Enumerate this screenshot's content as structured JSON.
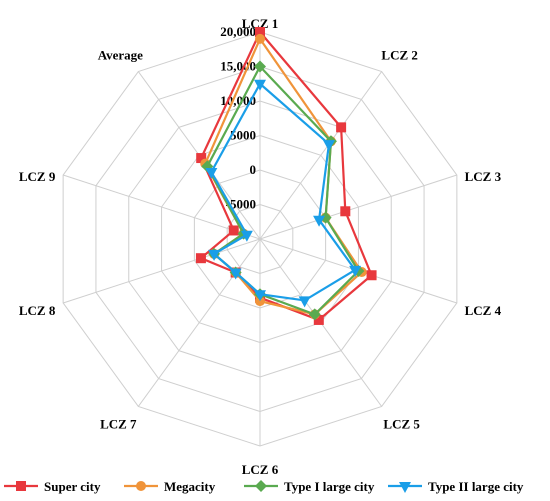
{
  "chart_data": {
    "type": "radar",
    "axes": [
      "LCZ 1",
      "LCZ 2",
      "LCZ 3",
      "LCZ 4",
      "LCZ 5",
      "LCZ 6",
      "LCZ 7",
      "LCZ 8",
      "LCZ 9",
      "Average"
    ],
    "ticks": [
      "-5000",
      "0",
      "5000",
      "10,000",
      "15,000",
      "20,000"
    ],
    "tick_values": [
      -5000,
      0,
      5000,
      10000,
      15000,
      20000
    ],
    "rmin": -10000,
    "rmax": 20000,
    "grid": true,
    "legend_position": "bottom",
    "series": [
      {
        "name": "Super city",
        "color": "#e8383d",
        "marker": "square",
        "values": [
          20000,
          10000,
          3000,
          7000,
          4500,
          -1500,
          -4000,
          -1000,
          -6000,
          4500
        ]
      },
      {
        "name": "Megacity",
        "color": "#f0943a",
        "marker": "circle",
        "values": [
          19000,
          7500,
          0,
          5500,
          3500,
          -1000,
          -4000,
          -3000,
          -7500,
          3500
        ]
      },
      {
        "name": "Type I large city",
        "color": "#5aaa50",
        "marker": "diamond",
        "values": [
          15000,
          7500,
          0,
          5000,
          3500,
          -2000,
          -4000,
          -3000,
          -7500,
          3000
        ]
      },
      {
        "name": "Type II large city",
        "color": "#1a9ee8",
        "marker": "triangle-down",
        "values": [
          12500,
          7000,
          -1000,
          4500,
          1000,
          -2000,
          -4000,
          -3000,
          -8000,
          2000
        ]
      }
    ]
  }
}
